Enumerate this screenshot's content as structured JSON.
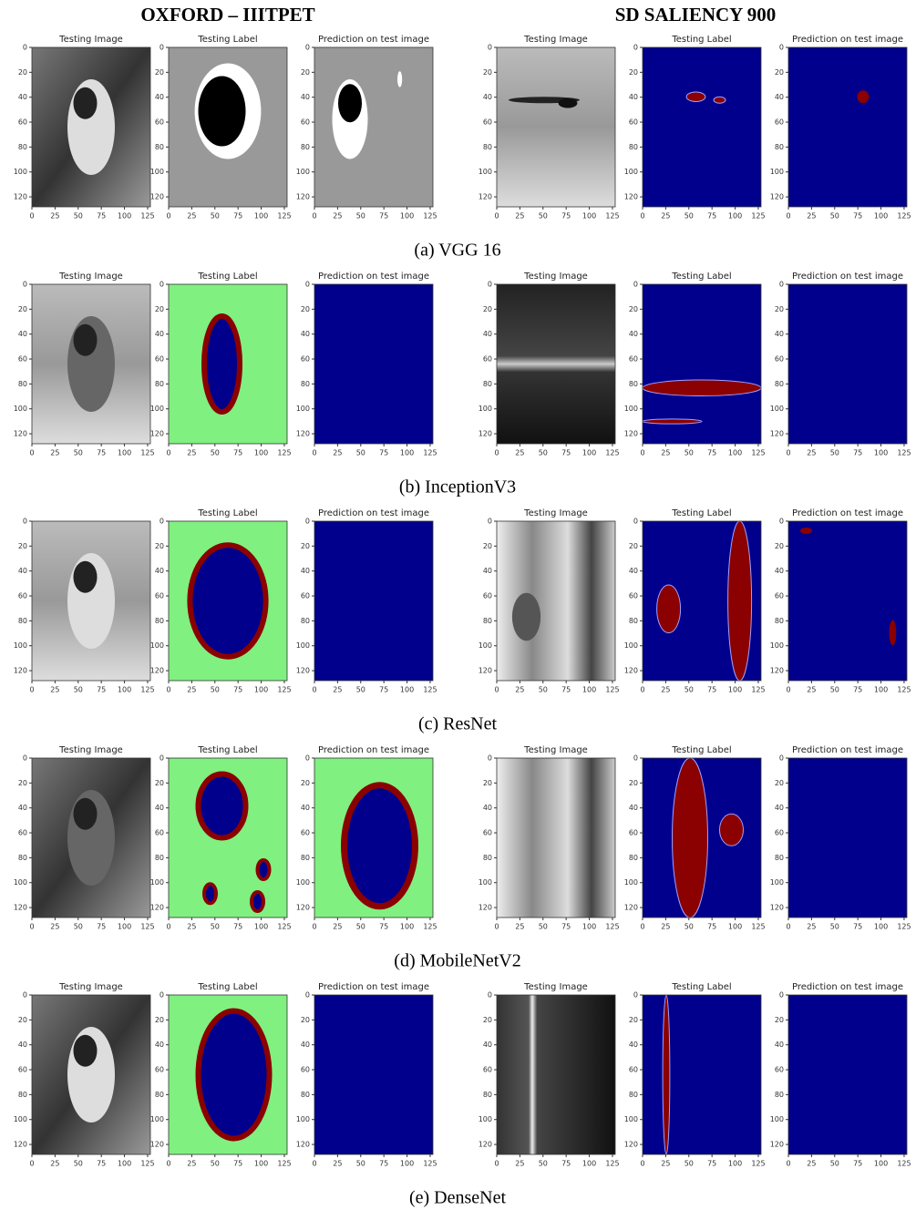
{
  "headers": [
    "OXFORD – IIITPET",
    "SD SALIENCY 900"
  ],
  "axes": {
    "xticks": [
      0,
      25,
      50,
      75,
      100,
      125
    ],
    "yticks": [
      0,
      20,
      40,
      60,
      80,
      100,
      120
    ]
  },
  "rows": [
    {
      "caption": "(a) VGG 16",
      "titles": [
        "Testing Image",
        "Testing Label",
        "Prediction on test image",
        "Testing Image",
        "Testing Label",
        "Prediction on test image"
      ]
    },
    {
      "caption": "(b) InceptionV3",
      "titles": [
        "Testing Image",
        "Testing Label",
        "Prediction on test image",
        "Testing Image",
        "Testing Label",
        "Prediction on test image"
      ]
    },
    {
      "caption": "(c) ResNet",
      "titles": [
        null,
        "Testing Label",
        "Prediction on test image",
        "Testing Image",
        "Testing Label",
        "Prediction on test image"
      ]
    },
    {
      "caption": "(d) MobileNetV2",
      "titles": [
        "Testing Image",
        "Testing Label",
        "Prediction on test image",
        "Testing Image",
        "Testing Label",
        "Prediction on test image"
      ]
    },
    {
      "caption": "(e) DenseNet",
      "titles": [
        "Testing Image",
        "Testing Label",
        "Prediction on test image",
        "Testing Image",
        "Testing Label",
        "Prediction on test image"
      ]
    }
  ]
}
